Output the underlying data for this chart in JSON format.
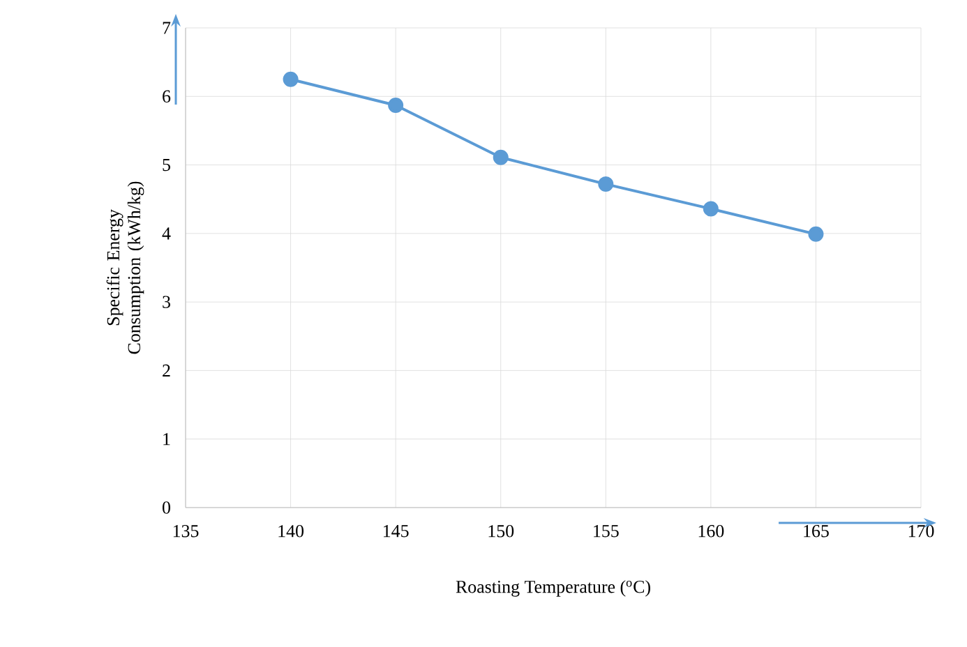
{
  "chart_data": {
    "type": "line",
    "xlabel": "Roasting Temperature ($^{o}$C)",
    "ylabel": "Specific Energy Consumption (kWh/kg)",
    "x": [
      140,
      145,
      150,
      155,
      160,
      165
    ],
    "series": [
      {
        "color": "#5b9bd5",
        "values": [
          6.25,
          5.87,
          5.11,
          4.72,
          4.36,
          3.99
        ]
      }
    ],
    "xlim": [
      135,
      170
    ],
    "xticks": [
      135,
      140,
      145,
      150,
      155,
      160,
      165,
      170
    ],
    "ylim": [
      0,
      7
    ],
    "yticks": [
      0,
      1,
      2,
      3,
      4,
      5,
      6,
      7
    ],
    "grid": true,
    "marker": "circle",
    "line_style": "solid"
  }
}
